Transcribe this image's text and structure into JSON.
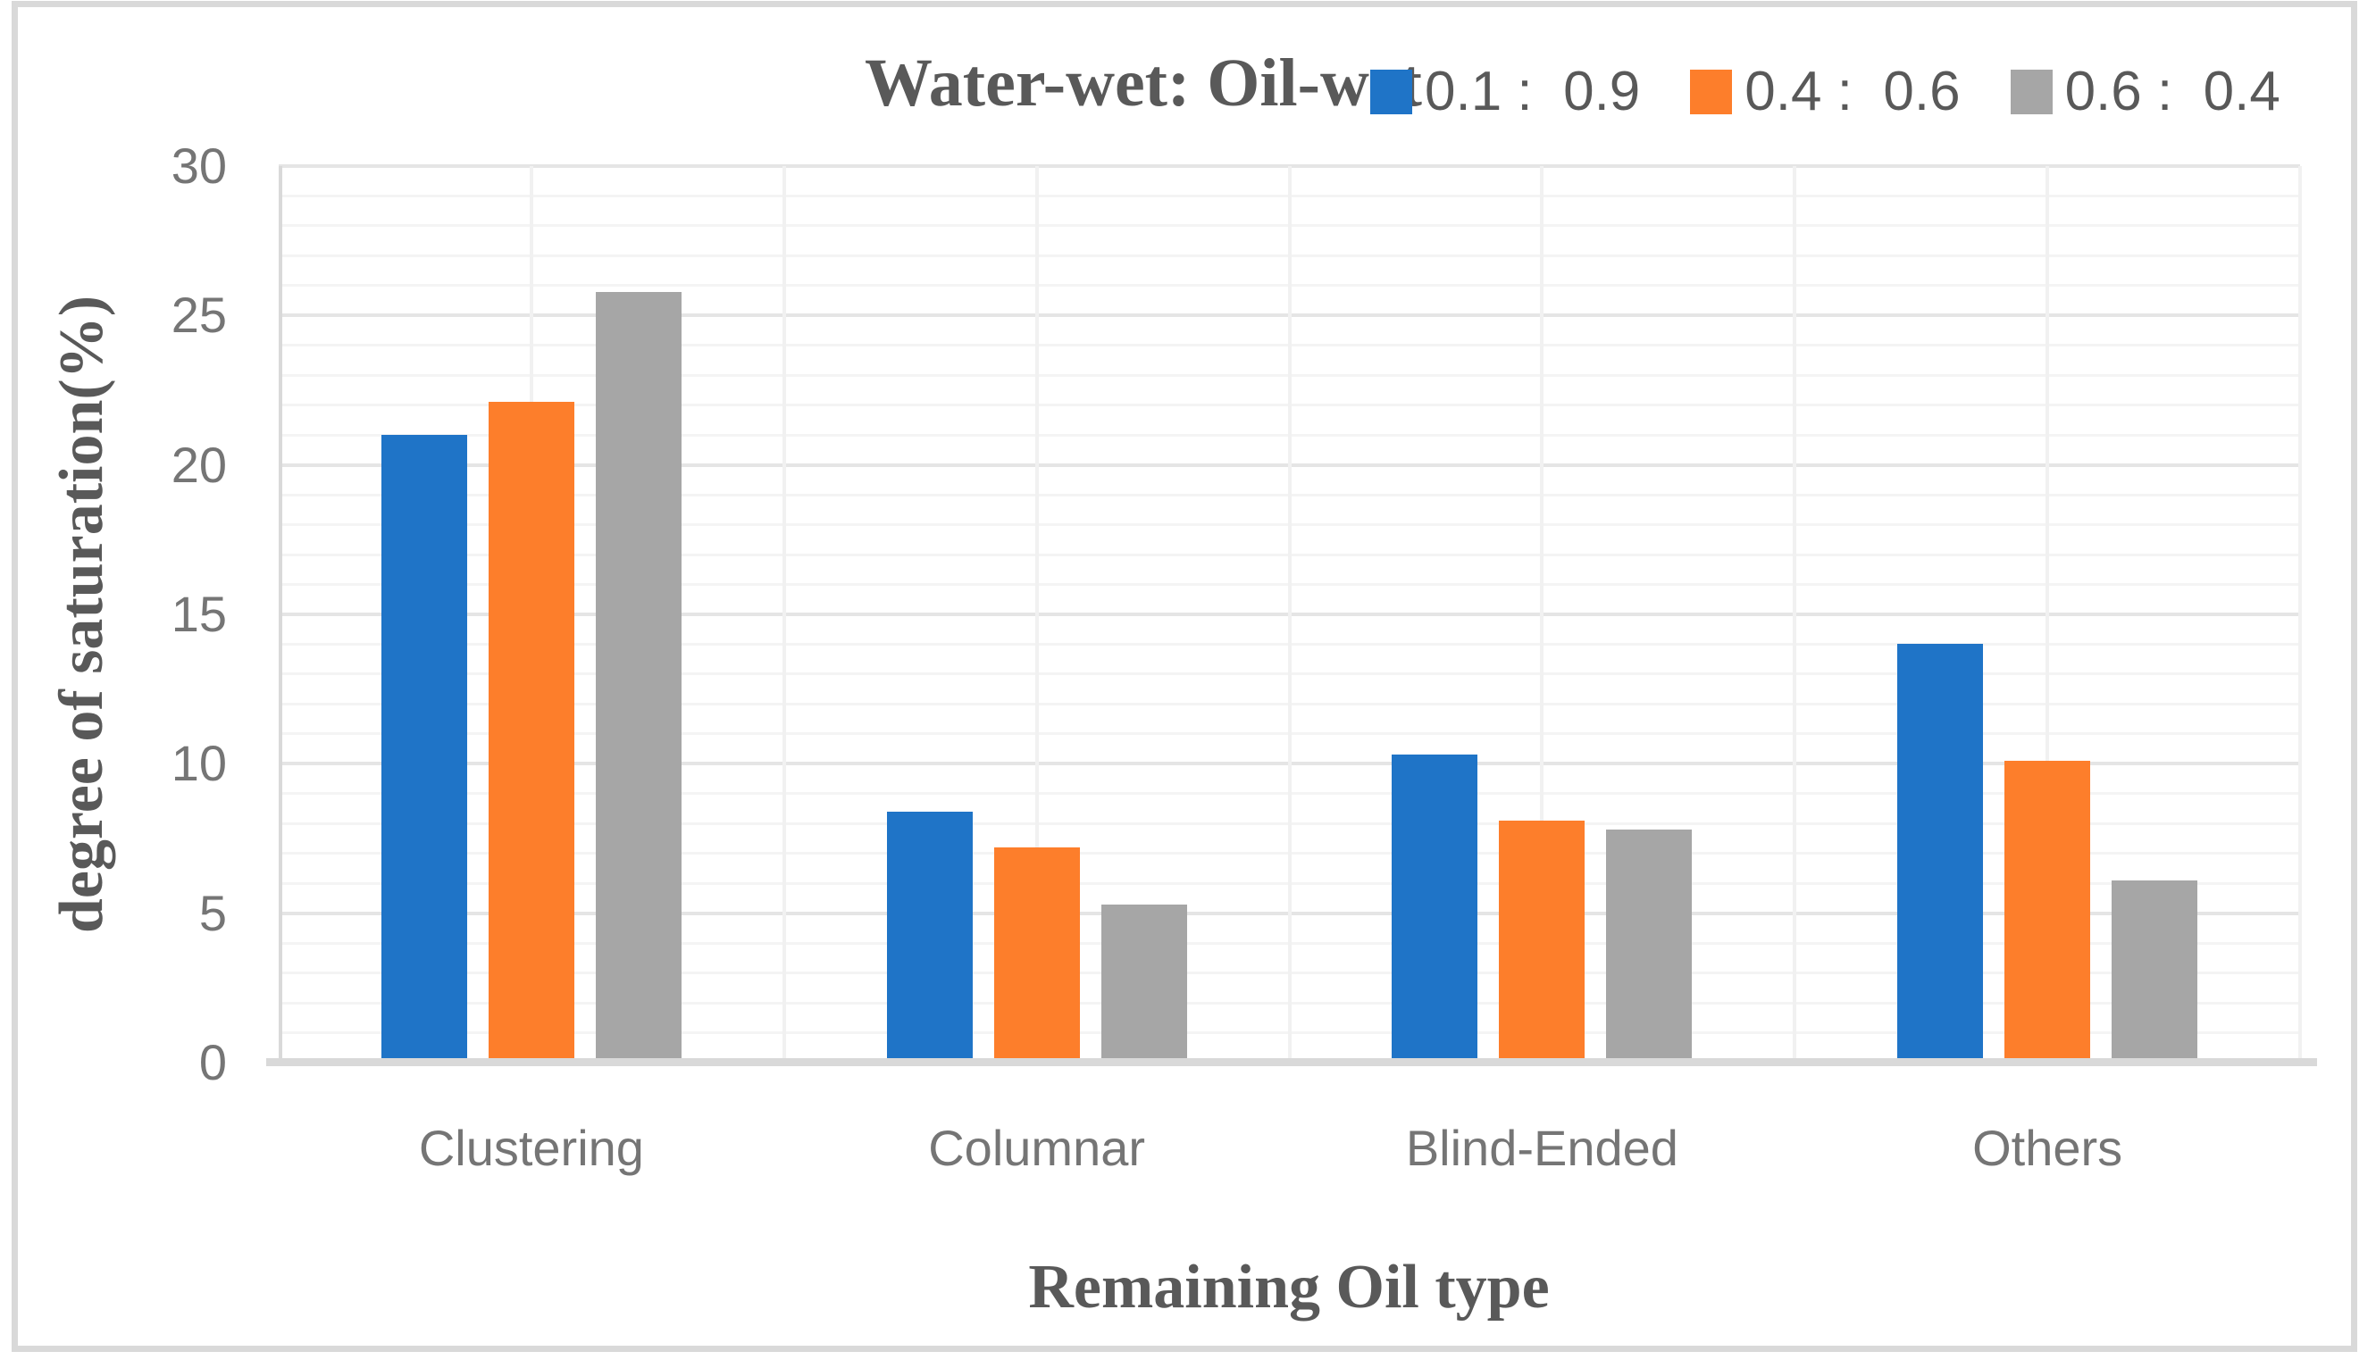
{
  "figure": {
    "title": "Water-wet: Oil-wet",
    "x_axis_title": "Remaining Oil type",
    "y_axis_title": "degree of saturation(%)"
  },
  "legend": {
    "items": [
      {
        "label": "0.1 :  0.9",
        "swatch": "blue-square",
        "color": "#1f74c7"
      },
      {
        "label": "0.4 :  0.6",
        "swatch": "orange-square",
        "color": "#fd7e2b"
      },
      {
        "label": "0.6 :  0.4",
        "swatch": "gray-square",
        "color": "#a6a6a6"
      }
    ]
  },
  "chart_data": {
    "type": "bar",
    "title": "Water-wet: Oil-wet",
    "xlabel": "Remaining Oil type",
    "ylabel": "degree of saturation(%)",
    "categories": [
      "Clustering",
      "Columnar",
      "Blind-Ended",
      "Others"
    ],
    "series": [
      {
        "name": "0.1 :  0.9",
        "color": "#1f74c7",
        "values": [
          21.0,
          8.4,
          10.3,
          14.0
        ]
      },
      {
        "name": "0.4 :  0.6",
        "color": "#fd7e2b",
        "values": [
          22.1,
          7.2,
          8.1,
          10.1
        ]
      },
      {
        "name": "0.6 :  0.4",
        "color": "#a6a6a6",
        "values": [
          25.8,
          5.3,
          7.8,
          6.1
        ]
      }
    ],
    "ylim": [
      0,
      30
    ],
    "ytick_step": 5,
    "yticks": [
      "0",
      "5",
      "10",
      "15",
      "20",
      "25",
      "30"
    ],
    "minor_grid_step": 1,
    "grid": true,
    "legend_position": "top-right"
  }
}
